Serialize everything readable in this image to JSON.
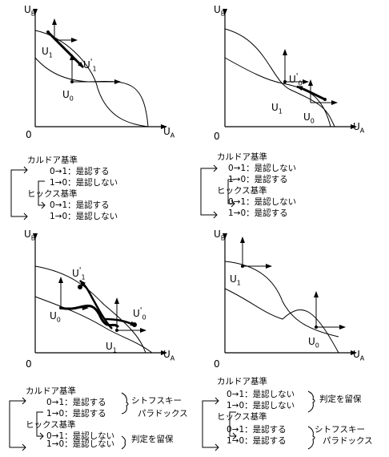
{
  "axes": {
    "y": "U",
    "y_sub": "B",
    "x": "U",
    "x_sub": "A",
    "origin": "0"
  },
  "panel1": {
    "labels": {
      "u1": "U",
      "u1_sub": "1",
      "u1p": "U",
      "u1p_sub": "1",
      "u1p_sup": "'",
      "u0": "U",
      "u0_sub": "0"
    },
    "kaldor": "カルドア基準",
    "k01": "0→1：是認する",
    "k10": "1→0：是認しない",
    "hicks": "ヒックス基準",
    "h01": "0→1：是認する",
    "h10": "1→0：是認しない"
  },
  "panel2": {
    "labels": {
      "u0p": "U",
      "u0p_sub": "0",
      "u0p_sup": "'",
      "u1": "U",
      "u1_sub": "1",
      "u0": "U",
      "u0_sub": "0"
    },
    "kaldor": "カルドア基準",
    "k01": "0→1：是認しない",
    "k10": "1→0：是認する",
    "hicks": "ヒックス基準",
    "h01": "0→1：是認しない",
    "h10": "1→0：是認する"
  },
  "panel3": {
    "labels": {
      "u1p": "U",
      "u1p_sub": "1",
      "u1p_sup": "'",
      "u0p": "U",
      "u0p_sub": "0",
      "u0p_sup": "'",
      "u0": "U",
      "u0_sub": "0",
      "u1": "U",
      "u1_sub": "1"
    },
    "kaldor": "カルドア基準",
    "k01": "0→1：是認する",
    "k10": "1→0：是認する",
    "hicks": "ヒックス基準",
    "h01": "0→1：是認しない",
    "h10": "1→0：是認しない",
    "paradox1": "シトフスキー",
    "paradox2": "パラドックス",
    "hold": "判定を留保"
  },
  "panel4": {
    "labels": {
      "u1": "U",
      "u1_sub": "1",
      "u0": "U",
      "u0_sub": "0"
    },
    "kaldor": "カルドア基準",
    "k01": "0→1：是認しない",
    "k10": "1→0：是認しない",
    "hold": "判定を留保",
    "hicks": "ヒックス基準",
    "h01": "0→1：是認する",
    "h10": "1→0：是認する",
    "paradox1": "シトフスキー",
    "paradox2": "パラドックス"
  }
}
